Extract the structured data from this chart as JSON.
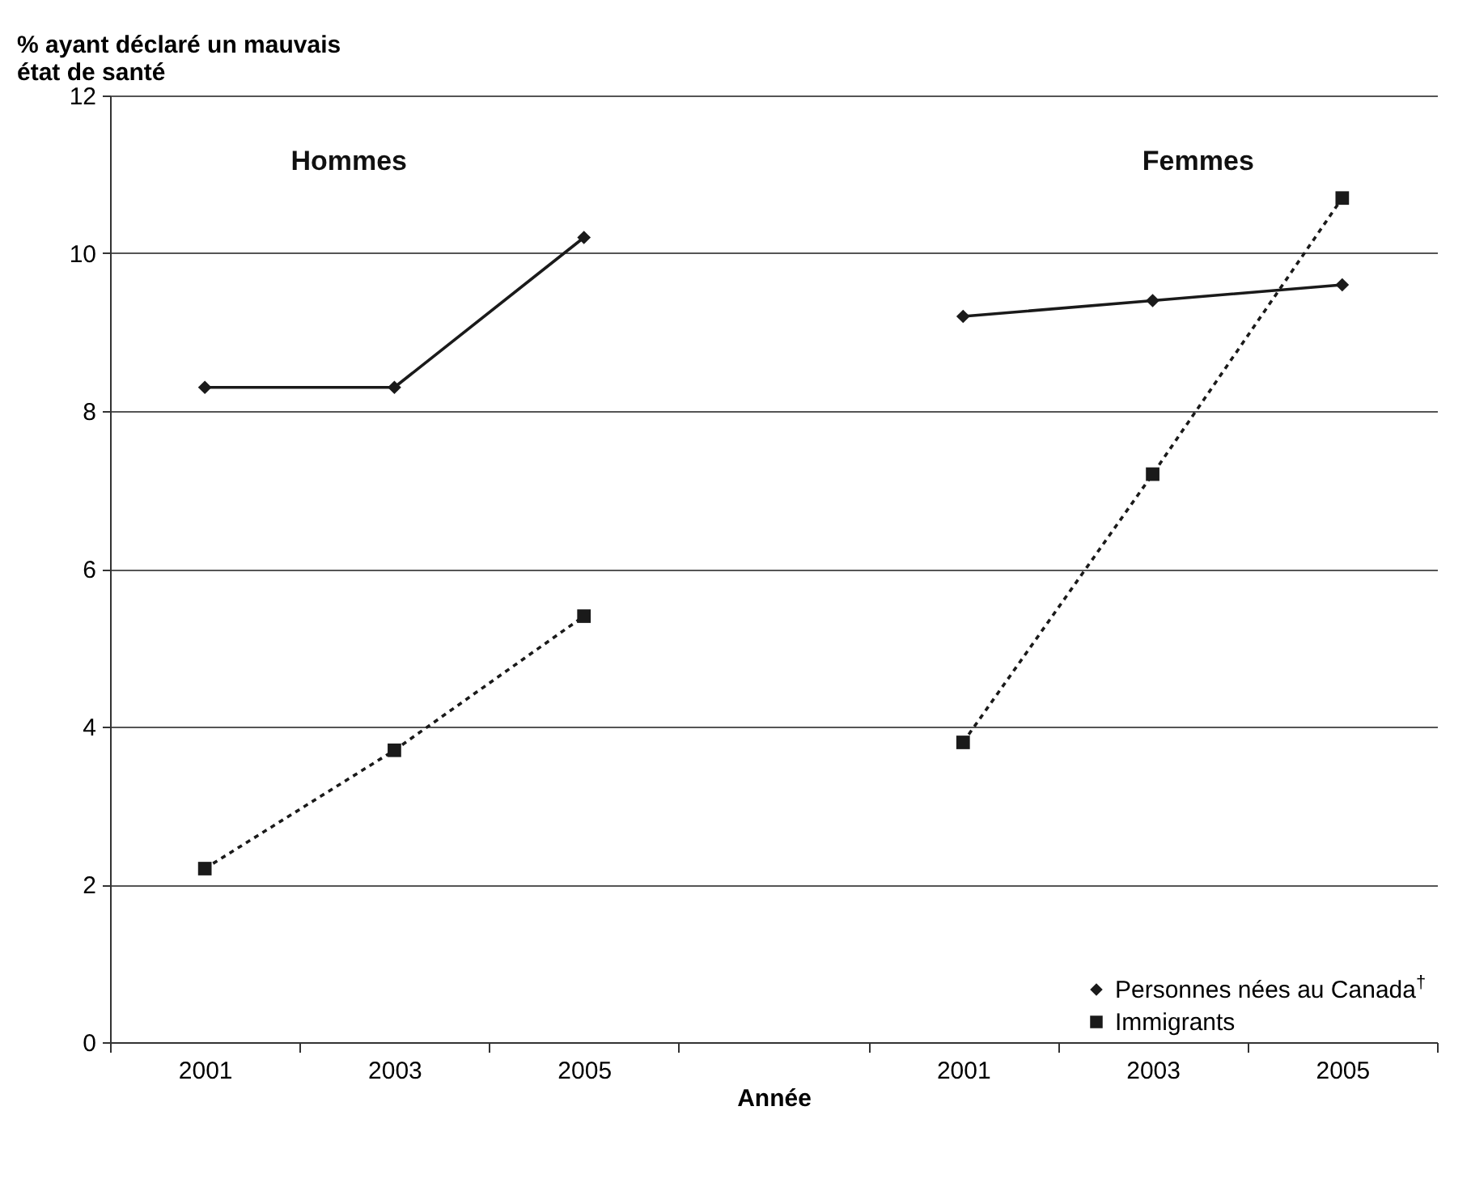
{
  "chart_data": {
    "type": "line",
    "ylabel": "% ayant déclaré un mauvais état de santé",
    "xlabel": "Année",
    "annotations": [
      "Hommes",
      "Femmes"
    ],
    "categories": [
      "2001",
      "2003",
      "2005",
      null,
      "2001",
      "2003",
      "2005"
    ],
    "series": [
      {
        "name": "Personnes nées au Canada$^{†}$",
        "color": "#1a1a1a",
        "marker": "diamond",
        "line_style": "solid",
        "values": [
          8.3,
          8.3,
          10.2,
          null,
          9.2,
          9.4,
          9.6
        ]
      },
      {
        "name": "Immigrants",
        "color": "#1a1a1a",
        "marker": "square",
        "line_style": "dotted",
        "values": [
          2.2,
          3.7,
          5.4,
          null,
          3.8,
          7.2,
          10.7
        ]
      }
    ],
    "ylim": [
      0,
      12
    ],
    "yticks": [
      0,
      2,
      4,
      6,
      8,
      10,
      12
    ],
    "grid": "y",
    "legend": "bottom right"
  }
}
